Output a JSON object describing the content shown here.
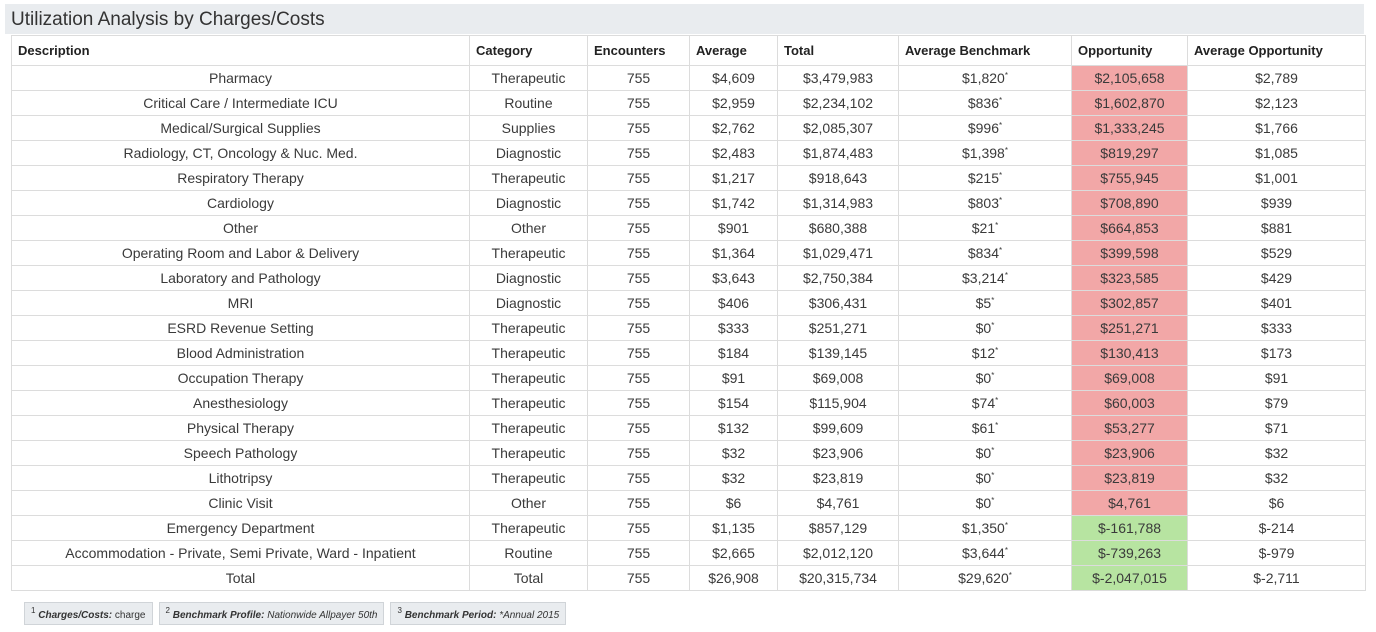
{
  "title": "Utilization Analysis by Charges/Costs",
  "columns": [
    "Description",
    "Category",
    "Encounters",
    "Average",
    "Total",
    "Average Benchmark",
    "Opportunity",
    "Average Opportunity"
  ],
  "rows": [
    {
      "desc": "Pharmacy",
      "cat": "Therapeutic",
      "enc": "755",
      "avg": "$4,609",
      "total": "$3,479,983",
      "bench": "$1,820",
      "opp": "$2,105,658",
      "avg_opp": "$2,789",
      "status": "pos"
    },
    {
      "desc": "Critical Care / Intermediate ICU",
      "cat": "Routine",
      "enc": "755",
      "avg": "$2,959",
      "total": "$2,234,102",
      "bench": "$836",
      "opp": "$1,602,870",
      "avg_opp": "$2,123",
      "status": "pos"
    },
    {
      "desc": "Medical/Surgical Supplies",
      "cat": "Supplies",
      "enc": "755",
      "avg": "$2,762",
      "total": "$2,085,307",
      "bench": "$996",
      "opp": "$1,333,245",
      "avg_opp": "$1,766",
      "status": "pos"
    },
    {
      "desc": "Radiology, CT, Oncology & Nuc. Med.",
      "cat": "Diagnostic",
      "enc": "755",
      "avg": "$2,483",
      "total": "$1,874,483",
      "bench": "$1,398",
      "opp": "$819,297",
      "avg_opp": "$1,085",
      "status": "pos"
    },
    {
      "desc": "Respiratory Therapy",
      "cat": "Therapeutic",
      "enc": "755",
      "avg": "$1,217",
      "total": "$918,643",
      "bench": "$215",
      "opp": "$755,945",
      "avg_opp": "$1,001",
      "status": "pos"
    },
    {
      "desc": "Cardiology",
      "cat": "Diagnostic",
      "enc": "755",
      "avg": "$1,742",
      "total": "$1,314,983",
      "bench": "$803",
      "opp": "$708,890",
      "avg_opp": "$939",
      "status": "pos"
    },
    {
      "desc": "Other",
      "cat": "Other",
      "enc": "755",
      "avg": "$901",
      "total": "$680,388",
      "bench": "$21",
      "opp": "$664,853",
      "avg_opp": "$881",
      "status": "pos"
    },
    {
      "desc": "Operating Room and Labor & Delivery",
      "cat": "Therapeutic",
      "enc": "755",
      "avg": "$1,364",
      "total": "$1,029,471",
      "bench": "$834",
      "opp": "$399,598",
      "avg_opp": "$529",
      "status": "pos"
    },
    {
      "desc": "Laboratory and Pathology",
      "cat": "Diagnostic",
      "enc": "755",
      "avg": "$3,643",
      "total": "$2,750,384",
      "bench": "$3,214",
      "opp": "$323,585",
      "avg_opp": "$429",
      "status": "pos"
    },
    {
      "desc": "MRI",
      "cat": "Diagnostic",
      "enc": "755",
      "avg": "$406",
      "total": "$306,431",
      "bench": "$5",
      "opp": "$302,857",
      "avg_opp": "$401",
      "status": "pos"
    },
    {
      "desc": "ESRD Revenue Setting",
      "cat": "Therapeutic",
      "enc": "755",
      "avg": "$333",
      "total": "$251,271",
      "bench": "$0",
      "opp": "$251,271",
      "avg_opp": "$333",
      "status": "pos"
    },
    {
      "desc": "Blood Administration",
      "cat": "Therapeutic",
      "enc": "755",
      "avg": "$184",
      "total": "$139,145",
      "bench": "$12",
      "opp": "$130,413",
      "avg_opp": "$173",
      "status": "pos"
    },
    {
      "desc": "Occupation Therapy",
      "cat": "Therapeutic",
      "enc": "755",
      "avg": "$91",
      "total": "$69,008",
      "bench": "$0",
      "opp": "$69,008",
      "avg_opp": "$91",
      "status": "pos"
    },
    {
      "desc": "Anesthesiology",
      "cat": "Therapeutic",
      "enc": "755",
      "avg": "$154",
      "total": "$115,904",
      "bench": "$74",
      "opp": "$60,003",
      "avg_opp": "$79",
      "status": "pos"
    },
    {
      "desc": "Physical Therapy",
      "cat": "Therapeutic",
      "enc": "755",
      "avg": "$132",
      "total": "$99,609",
      "bench": "$61",
      "opp": "$53,277",
      "avg_opp": "$71",
      "status": "pos"
    },
    {
      "desc": "Speech Pathology",
      "cat": "Therapeutic",
      "enc": "755",
      "avg": "$32",
      "total": "$23,906",
      "bench": "$0",
      "opp": "$23,906",
      "avg_opp": "$32",
      "status": "pos"
    },
    {
      "desc": "Lithotripsy",
      "cat": "Therapeutic",
      "enc": "755",
      "avg": "$32",
      "total": "$23,819",
      "bench": "$0",
      "opp": "$23,819",
      "avg_opp": "$32",
      "status": "pos"
    },
    {
      "desc": "Clinic Visit",
      "cat": "Other",
      "enc": "755",
      "avg": "$6",
      "total": "$4,761",
      "bench": "$0",
      "opp": "$4,761",
      "avg_opp": "$6",
      "status": "pos"
    },
    {
      "desc": "Emergency Department",
      "cat": "Therapeutic",
      "enc": "755",
      "avg": "$1,135",
      "total": "$857,129",
      "bench": "$1,350",
      "opp": "$-161,788",
      "avg_opp": "$-214",
      "status": "neg"
    },
    {
      "desc": "Accommodation - Private, Semi Private, Ward - Inpatient",
      "cat": "Routine",
      "enc": "755",
      "avg": "$2,665",
      "total": "$2,012,120",
      "bench": "$3,644",
      "opp": "$-739,263",
      "avg_opp": "$-979",
      "status": "neg"
    },
    {
      "desc": "Total",
      "cat": "Total",
      "enc": "755",
      "avg": "$26,908",
      "total": "$20,315,734",
      "bench": "$29,620",
      "opp": "$-2,047,015",
      "avg_opp": "$-2,711",
      "status": "neg"
    }
  ],
  "bench_marker": "*",
  "footnotes": [
    {
      "sup": "1",
      "label": "Charges/Costs:",
      "value": "charge"
    },
    {
      "sup": "2",
      "label": "Benchmark Profile:",
      "value": "Nationwide Allpayer 50th"
    },
    {
      "sup": "3",
      "label": "Benchmark Period:",
      "value": "*Annual 2015"
    }
  ],
  "colors": {
    "positive_opportunity": "#f2a7a7",
    "negative_opportunity": "#b7e4a1",
    "title_bg": "#e9ecef"
  }
}
